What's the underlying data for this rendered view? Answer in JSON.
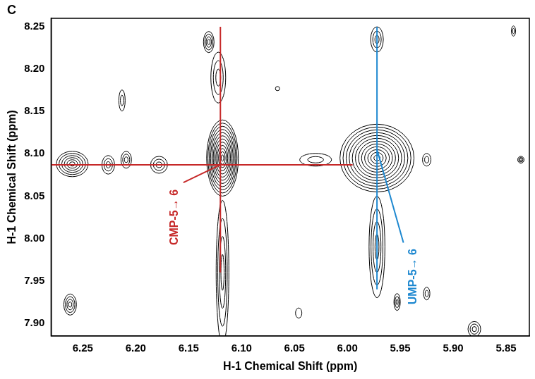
{
  "chart_data": {
    "type": "contour",
    "panel_label": "C",
    "x_label": "H-1 Chemical Shift (ppm)",
    "y_label": "H-1 Chemical Shift (ppm)",
    "xlim": [
      6.28,
      5.828
    ],
    "xticks": [
      6.25,
      {
        "value": 6.2,
        "label": "6.20"
      },
      6.15,
      {
        "value": 6.1,
        "label": "6.10"
      },
      6.05,
      {
        "value": 6.0,
        "label": "6.00"
      },
      5.95,
      {
        "value": 5.9,
        "label": "5.90"
      },
      5.85
    ],
    "ylim": [
      7.885,
      8.26
    ],
    "yticks": [
      {
        "value": 7.9,
        "label": "7.90"
      },
      7.95,
      {
        "value": 8.0,
        "label": "8.00"
      },
      8.05,
      {
        "value": 8.1,
        "label": "8.10"
      },
      8.15,
      {
        "value": 8.2,
        "label": "8.20"
      },
      8.25
    ],
    "grid": false,
    "color": "#000000",
    "peaks": [
      {
        "x": 6.118,
        "y": 8.095,
        "x_width": 0.03,
        "y_width": 0.09,
        "levels": 12
      },
      {
        "x": 6.118,
        "y": 7.96,
        "x_width": 0.012,
        "y_width": 0.17,
        "levels": 4
      },
      {
        "x": 6.122,
        "y": 8.19,
        "x_width": 0.014,
        "y_width": 0.06,
        "levels": 3
      },
      {
        "x": 6.131,
        "y": 8.232,
        "x_width": 0.01,
        "y_width": 0.025,
        "levels": 4
      },
      {
        "x": 5.972,
        "y": 8.095,
        "x_width": 0.07,
        "y_width": 0.08,
        "levels": 12
      },
      {
        "x": 5.972,
        "y": 7.99,
        "x_width": 0.015,
        "y_width": 0.12,
        "levels": 4
      },
      {
        "x": 5.972,
        "y": 8.235,
        "x_width": 0.012,
        "y_width": 0.03,
        "levels": 3
      },
      {
        "x": 6.26,
        "y": 8.088,
        "x_width": 0.03,
        "y_width": 0.03,
        "levels": 6
      },
      {
        "x": 6.262,
        "y": 7.922,
        "x_width": 0.012,
        "y_width": 0.025,
        "levels": 4
      },
      {
        "x": 6.226,
        "y": 8.087,
        "x_width": 0.012,
        "y_width": 0.022,
        "levels": 3
      },
      {
        "x": 6.209,
        "y": 8.093,
        "x_width": 0.01,
        "y_width": 0.02,
        "levels": 3
      },
      {
        "x": 6.178,
        "y": 8.087,
        "x_width": 0.016,
        "y_width": 0.02,
        "levels": 3
      },
      {
        "x": 6.213,
        "y": 8.163,
        "x_width": 0.006,
        "y_width": 0.025,
        "levels": 2
      },
      {
        "x": 6.046,
        "y": 7.912,
        "x_width": 0.006,
        "y_width": 0.012,
        "levels": 1
      },
      {
        "x": 6.066,
        "y": 8.177,
        "x_width": 0.004,
        "y_width": 0.005,
        "levels": 1
      },
      {
        "x": 6.03,
        "y": 8.093,
        "x_width": 0.03,
        "y_width": 0.015,
        "levels": 2
      },
      {
        "x": 5.953,
        "y": 7.925,
        "x_width": 0.006,
        "y_width": 0.02,
        "levels": 3
      },
      {
        "x": 5.925,
        "y": 8.093,
        "x_width": 0.008,
        "y_width": 0.015,
        "levels": 2
      },
      {
        "x": 5.925,
        "y": 7.935,
        "x_width": 0.006,
        "y_width": 0.015,
        "levels": 2
      },
      {
        "x": 5.88,
        "y": 7.893,
        "x_width": 0.012,
        "y_width": 0.018,
        "levels": 3
      },
      {
        "x": 5.836,
        "y": 8.093,
        "x_width": 0.006,
        "y_width": 0.008,
        "levels": 3
      },
      {
        "x": 5.843,
        "y": 8.245,
        "x_width": 0.004,
        "y_width": 0.012,
        "levels": 2
      }
    ],
    "lines": [
      {
        "x": [
          6.28,
          5.995
        ],
        "y": [
          8.087,
          8.087
        ],
        "color": "#c62828"
      },
      {
        "x": [
          6.12,
          6.12
        ],
        "y": [
          7.96,
          8.25
        ],
        "color": "#c62828"
      },
      {
        "x": [
          6.155,
          6.12
        ],
        "y": [
          8.066,
          8.087
        ],
        "color": "#c62828"
      },
      {
        "x": [
          5.972,
          5.972
        ],
        "y": [
          7.94,
          8.25
        ],
        "color": "#1e88d0"
      },
      {
        "x": [
          5.947,
          5.972
        ],
        "y": [
          7.995,
          8.105
        ],
        "color": "#1e88d0"
      }
    ],
    "annotations": [
      {
        "text": "CMP-5→ 6",
        "x": 6.163,
        "y": 8.025,
        "color": "#c62828"
      },
      {
        "text": "UMP-5→ 6",
        "x": 5.938,
        "y": 7.955,
        "color": "#1e88d0"
      }
    ]
  }
}
